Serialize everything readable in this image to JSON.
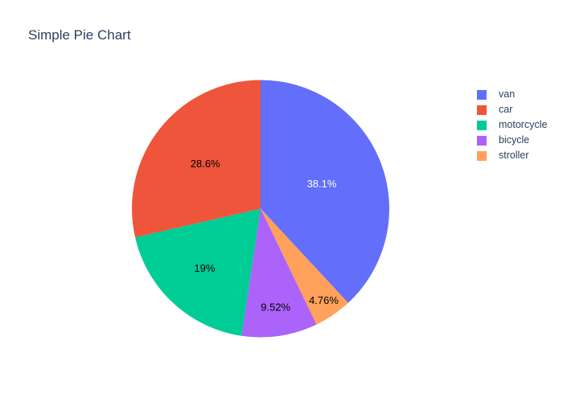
{
  "chart_data": {
    "type": "pie",
    "title": "Simple Pie Chart",
    "labels": [
      "van",
      "car",
      "motorcycle",
      "bicycle",
      "stroller"
    ],
    "percents": [
      38.1,
      28.6,
      19.05,
      9.52,
      4.76
    ],
    "percent_labels": [
      "38.1%",
      "28.6%",
      "19%",
      "9.52%",
      "4.76%"
    ],
    "colors": [
      "#636EFA",
      "#EF553B",
      "#00CC96",
      "#AB63FA",
      "#FFA15A"
    ],
    "slice_text_colors": [
      "#ffffff",
      "#000000",
      "#000000",
      "#000000",
      "#000000"
    ],
    "clockwise_order_from_top": [
      0,
      4,
      3,
      2,
      1
    ],
    "label_radius_frac": [
      0.51,
      0.55,
      0.64,
      0.78,
      0.87
    ],
    "legend_position": "right",
    "grid": false,
    "background_color": "#ffffff",
    "title_color": "#2a3f5f",
    "legend_text_color": "#2a3f5f"
  }
}
